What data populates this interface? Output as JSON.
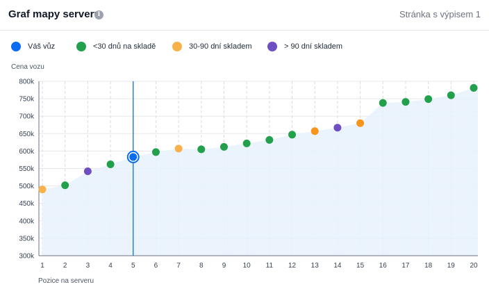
{
  "header": {
    "title": "Graf mapy serveru",
    "info_icon": "info-icon",
    "page_indicator": "Stránka s výpisem 1"
  },
  "legend": {
    "items": [
      {
        "label": "Váš vůz",
        "color": "#0a6cf0"
      },
      {
        "label": "<30 dnů na skladě",
        "color": "#22a04b"
      },
      {
        "label": "30-90 dní skladem",
        "color": "#f9b24b"
      },
      {
        "label": "> 90 dní skladem",
        "color": "#6e4fc1"
      }
    ]
  },
  "chart_data": {
    "type": "scatter",
    "ylabel": "Cena vozu",
    "xlabel": "Pozice na serveru",
    "x_ticks": [
      1,
      2,
      3,
      4,
      5,
      6,
      7,
      8,
      9,
      10,
      11,
      12,
      13,
      14,
      15,
      16,
      17,
      18,
      19,
      20
    ],
    "y_ticks": [
      "300k",
      "350k",
      "400k",
      "450k",
      "500k",
      "550k",
      "600k",
      "650k",
      "700k",
      "750k",
      "800k"
    ],
    "ylim": [
      300000,
      800000
    ],
    "xlim": [
      1,
      20
    ],
    "highlight_x": 5,
    "grid": true,
    "colors": {
      "your_car": "#0a6cf0",
      "under_30": "#22a04b",
      "30_90": "#f9b24b",
      "30_90_dark": "#f7951d",
      "over_90": "#6e4fc1",
      "area_fill": "#e8f2fd"
    },
    "points": [
      {
        "x": 1,
        "y": 490000,
        "category": "30_90"
      },
      {
        "x": 2,
        "y": 502000,
        "category": "under_30"
      },
      {
        "x": 3,
        "y": 542000,
        "category": "over_90"
      },
      {
        "x": 4,
        "y": 562000,
        "category": "under_30"
      },
      {
        "x": 5,
        "y": 583000,
        "category": "your_car"
      },
      {
        "x": 6,
        "y": 597000,
        "category": "under_30"
      },
      {
        "x": 7,
        "y": 607000,
        "category": "30_90"
      },
      {
        "x": 8,
        "y": 605000,
        "category": "under_30"
      },
      {
        "x": 9,
        "y": 612000,
        "category": "under_30"
      },
      {
        "x": 10,
        "y": 622000,
        "category": "under_30"
      },
      {
        "x": 11,
        "y": 632000,
        "category": "under_30"
      },
      {
        "x": 12,
        "y": 647000,
        "category": "under_30"
      },
      {
        "x": 13,
        "y": 657000,
        "category": "30_90_dark"
      },
      {
        "x": 14,
        "y": 667000,
        "category": "over_90"
      },
      {
        "x": 15,
        "y": 680000,
        "category": "30_90_dark"
      },
      {
        "x": 16,
        "y": 738000,
        "category": "under_30"
      },
      {
        "x": 17,
        "y": 741000,
        "category": "under_30"
      },
      {
        "x": 18,
        "y": 749000,
        "category": "under_30"
      },
      {
        "x": 19,
        "y": 760000,
        "category": "under_30"
      },
      {
        "x": 20,
        "y": 781000,
        "category": "under_30"
      }
    ]
  }
}
